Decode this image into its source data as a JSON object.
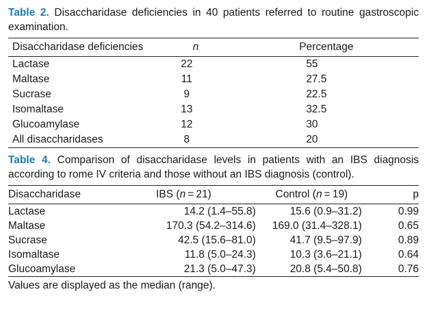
{
  "table2": {
    "label": "Table 2.",
    "caption": " Disaccharidase deficiencies in 40 patients referred to routine gastroscopic examination.",
    "headers": {
      "col1": "Disaccharidase  deficiencies",
      "col2": "n",
      "col3": "Percentage"
    },
    "rows": [
      {
        "name": "Lactase",
        "n": "22",
        "pct": "55"
      },
      {
        "name": "Maltase",
        "n": "11",
        "pct": "27.5"
      },
      {
        "name": "Sucrase",
        "n": "9",
        "pct": "22.5"
      },
      {
        "name": "Isomaltase",
        "n": "13",
        "pct": "32.5"
      },
      {
        "name": "Glucoamylase",
        "n": "12",
        "pct": "30"
      },
      {
        "name": "All disaccharidases",
        "n": "8",
        "pct": "20"
      }
    ]
  },
  "table4": {
    "label": "Table 4.",
    "caption": " Comparison of disaccharidase levels in patients with an IBS diagnosis according to rome IV criteria and those without an IBS diagnosis (control).",
    "headers": {
      "col1": "Disaccharidase",
      "col2_prefix": "IBS (",
      "col2_n": "n",
      "col2_suffix": " = 21)",
      "col3_prefix": "Control (",
      "col3_n": "n",
      "col3_suffix": " = 19)",
      "col4": "p"
    },
    "rows": [
      {
        "name": "Lactase",
        "ibs": "14.2 (1.4–55.8)",
        "control": "15.6 (0.9–31.2)",
        "p": "0.99"
      },
      {
        "name": "Maltase",
        "ibs": "170.3 (54.2–314.6)",
        "control": "169.0 (31.4–328.1)",
        "p": "0.65"
      },
      {
        "name": "Sucrase",
        "ibs": "42.5 (15.6–81.0)",
        "control": "41.7 (9.5–97.9)",
        "p": "0.89"
      },
      {
        "name": "Isomaltase",
        "ibs": "11.8 (5.0–24.3)",
        "control": "10.3 (3.6–21.1)",
        "p": "0.64"
      },
      {
        "name": "Glucoamylase",
        "ibs": "21.3 (5.0–47.3)",
        "control": "20.8 (5.4–50.8)",
        "p": "0.76"
      }
    ],
    "footnote": "Values are displayed as the median (range)."
  }
}
